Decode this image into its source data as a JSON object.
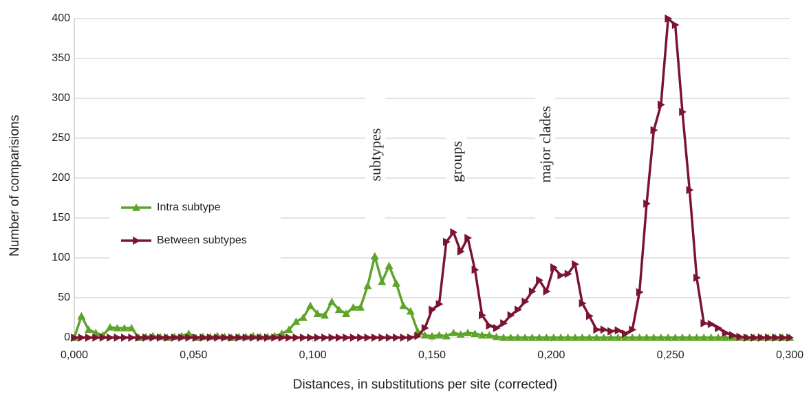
{
  "chart_data": {
    "type": "line",
    "xlabel": "Distances, in substitutions per site (corrected)",
    "ylabel": "Number of comparisions",
    "annotations": [
      "subtypes",
      "groups",
      "major clades"
    ],
    "x": [
      0,
      0.003,
      0.006,
      0.009,
      0.012,
      0.015,
      0.018,
      0.021,
      0.024,
      0.027,
      0.03,
      0.033,
      0.036,
      0.039,
      0.042,
      0.045,
      0.048,
      0.051,
      0.054,
      0.057,
      0.06,
      0.063,
      0.066,
      0.069,
      0.072,
      0.075,
      0.078,
      0.081,
      0.084,
      0.087,
      0.09,
      0.093,
      0.096,
      0.099,
      0.102,
      0.105,
      0.108,
      0.111,
      0.114,
      0.117,
      0.12,
      0.123,
      0.126,
      0.129,
      0.132,
      0.135,
      0.138,
      0.141,
      0.144,
      0.147,
      0.15,
      0.153,
      0.156,
      0.159,
      0.162,
      0.165,
      0.168,
      0.171,
      0.174,
      0.177,
      0.18,
      0.183,
      0.186,
      0.189,
      0.192,
      0.195,
      0.198,
      0.201,
      0.204,
      0.207,
      0.21,
      0.213,
      0.216,
      0.219,
      0.222,
      0.225,
      0.228,
      0.231,
      0.234,
      0.237,
      0.24,
      0.243,
      0.246,
      0.249,
      0.252,
      0.255,
      0.258,
      0.261,
      0.264,
      0.267,
      0.27,
      0.273,
      0.276,
      0.279,
      0.282,
      0.285,
      0.288,
      0.291,
      0.294,
      0.297,
      0.3
    ],
    "series": [
      {
        "name": "Intra subtype",
        "color": "#5ea32a",
        "marker": "triangle-up",
        "values": [
          0,
          27,
          10,
          6,
          3,
          13,
          12,
          12,
          12,
          0,
          1,
          2,
          1,
          0,
          1,
          2,
          5,
          0,
          1,
          1,
          2,
          1,
          0,
          1,
          1,
          2,
          1,
          1,
          2,
          5,
          10,
          20,
          25,
          40,
          30,
          28,
          45,
          35,
          30,
          38,
          38,
          65,
          102,
          70,
          90,
          68,
          40,
          33,
          8,
          3,
          2,
          3,
          2,
          6,
          4,
          6,
          5,
          3,
          3,
          1,
          0,
          0,
          0,
          0,
          0,
          0,
          0,
          0,
          0,
          0,
          0,
          0,
          0,
          0,
          0,
          0,
          0,
          0,
          0,
          0,
          0,
          0,
          0,
          0,
          0,
          0,
          0,
          0,
          0,
          0,
          0,
          0,
          0,
          0,
          0,
          0,
          0,
          0,
          0,
          0,
          0
        ]
      },
      {
        "name": "Between subtypes",
        "color": "#7b1430",
        "marker": "triangle-right",
        "values": [
          0,
          0,
          0,
          0,
          0,
          0,
          0,
          0,
          0,
          0,
          0,
          0,
          0,
          0,
          0,
          0,
          0,
          0,
          0,
          0,
          0,
          0,
          0,
          0,
          0,
          0,
          0,
          0,
          0,
          0,
          0,
          0,
          0,
          0,
          0,
          0,
          0,
          0,
          0,
          0,
          0,
          0,
          0,
          0,
          0,
          0,
          0,
          0,
          2,
          12,
          35,
          42,
          120,
          132,
          108,
          125,
          85,
          28,
          15,
          12,
          18,
          28,
          35,
          45,
          58,
          72,
          58,
          88,
          78,
          80,
          92,
          43,
          27,
          10,
          10,
          8,
          9,
          5,
          10,
          57,
          168,
          260,
          292,
          400,
          392,
          283,
          185,
          75,
          18,
          17,
          12,
          6,
          3,
          1,
          0,
          0,
          0,
          0,
          0,
          0,
          0
        ]
      }
    ],
    "xlim": [
      0,
      0.3
    ],
    "xticks": [
      {
        "value": 0,
        "label": "0,000"
      },
      {
        "value": 0.05,
        "label": "0,050"
      },
      {
        "value": 0.1,
        "label": "0,100"
      },
      {
        "value": 0.15,
        "label": "0,150"
      },
      {
        "value": 0.2,
        "label": "0,200"
      },
      {
        "value": 0.25,
        "label": "0,250"
      },
      {
        "value": 0.3,
        "label": "0,300"
      }
    ],
    "ylim": [
      0,
      400
    ],
    "yticks": [
      0,
      50,
      100,
      150,
      200,
      250,
      300,
      350,
      400
    ],
    "grid": true
  }
}
